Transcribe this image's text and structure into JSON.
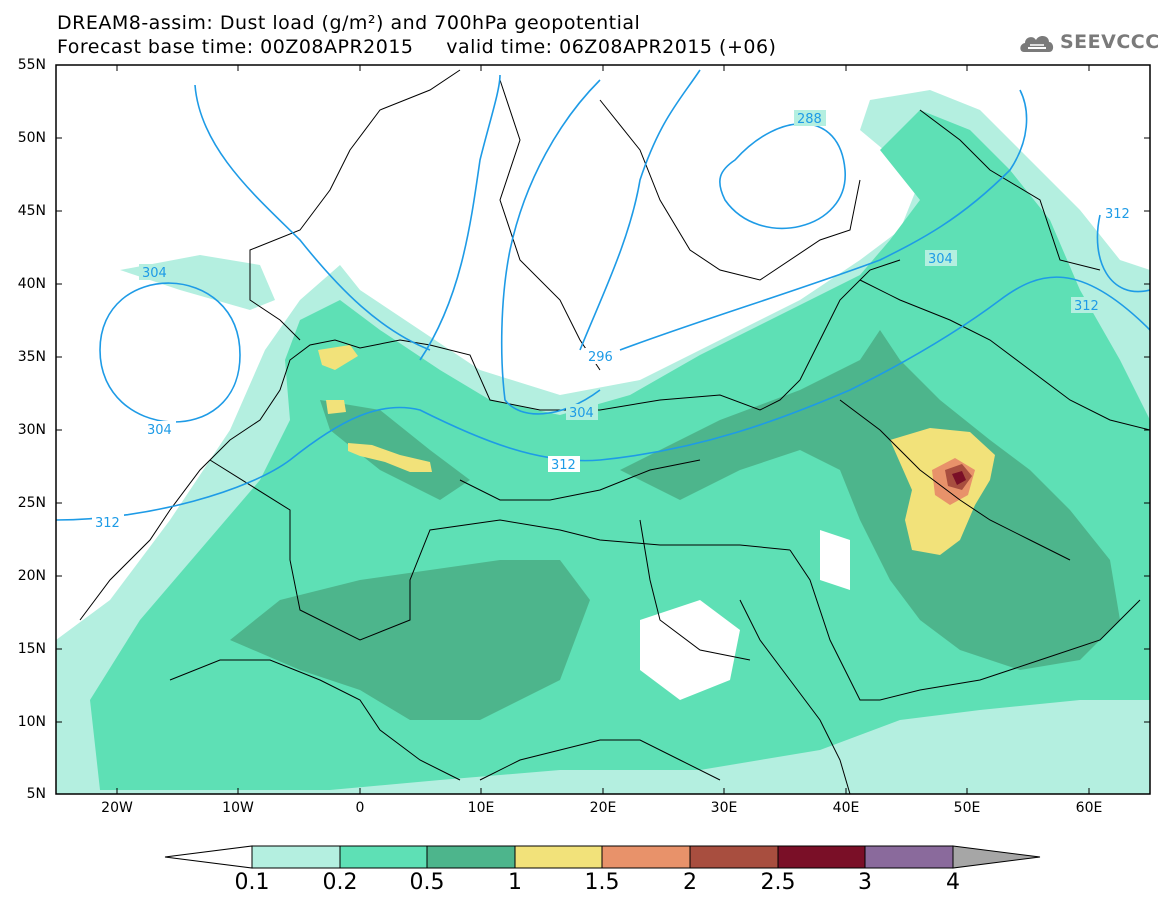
{
  "header": {
    "title_line1": "DREAM8-assim: Dust load (g/m²) and 700hPa geopotential",
    "title_line2": "Forecast base time: 00Z08APR2015     valid time: 06Z08APR2015 (+06)",
    "logo_text": "SEEVCCC",
    "logo_icon": "cloud-icon"
  },
  "map": {
    "lat_labels": [
      "55N",
      "50N",
      "45N",
      "40N",
      "35N",
      "30N",
      "25N",
      "20N",
      "15N",
      "10N",
      "5N"
    ],
    "lon_labels": [
      "20W",
      "10W",
      "0",
      "10E",
      "20E",
      "30E",
      "40E",
      "50E",
      "60E"
    ],
    "contour_labels": [
      "288",
      "304",
      "312",
      "304",
      "304",
      "296",
      "304",
      "312",
      "312",
      "312"
    ],
    "colors": {
      "contour_line": "#1e9be6",
      "border_line": "#000000"
    }
  },
  "colorbar": {
    "labels": [
      "0.1",
      "0.2",
      "0.5",
      "1",
      "1.5",
      "2",
      "2.5",
      "3",
      "4"
    ],
    "colors": [
      "#ffffff",
      "#b4efe0",
      "#5ee0b5",
      "#4db58c",
      "#f2e27a",
      "#e8926a",
      "#a84e3f",
      "#7a0f27",
      "#8a6a9c",
      "#a6a6a6"
    ]
  }
}
